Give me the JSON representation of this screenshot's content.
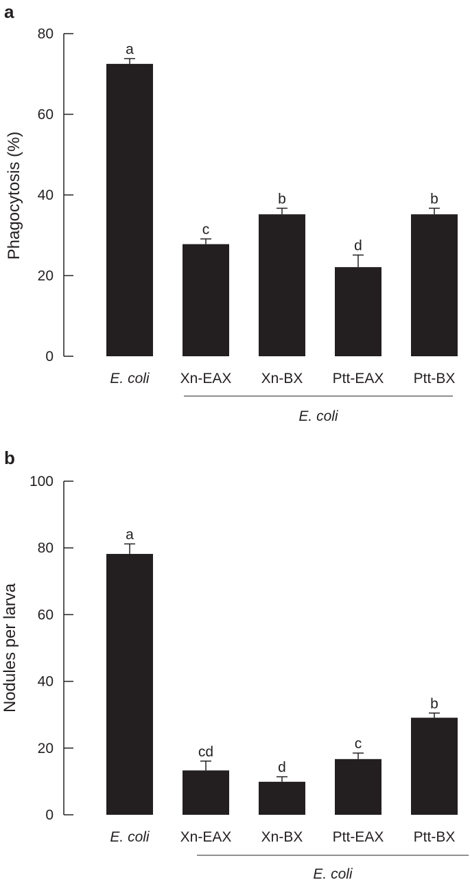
{
  "chart_data": [
    {
      "type": "bar",
      "panel": "a",
      "ylabel": "Phagocytosis (%)",
      "ylim": [
        0,
        80
      ],
      "yticks": [
        0,
        20,
        40,
        60,
        80
      ],
      "categories": [
        "E. coli",
        "Xn-EAX",
        "Xn-BX",
        "Ptt-EAX",
        "Ptt-BX"
      ],
      "italic_categories": [
        true,
        false,
        false,
        false,
        false
      ],
      "values": [
        72.5,
        27.8,
        35.2,
        22.1,
        35.2
      ],
      "errors": [
        1.3,
        1.3,
        1.5,
        3.0,
        1.5
      ],
      "significance": [
        "a",
        "c",
        "b",
        "d",
        "b"
      ],
      "group_label": "E. coli",
      "group_range": [
        1,
        4
      ],
      "color": "#231f20"
    },
    {
      "type": "bar",
      "panel": "b",
      "ylabel": "Nodules per larva",
      "ylim": [
        0,
        100
      ],
      "yticks": [
        0,
        20,
        40,
        60,
        80,
        100
      ],
      "categories": [
        "E. coli",
        "Xn-EAX",
        "Xn-BX",
        "Ptt-EAX",
        "Ptt-BX"
      ],
      "italic_categories": [
        true,
        false,
        false,
        false,
        false
      ],
      "values": [
        78.2,
        13.3,
        9.9,
        16.7,
        29.1
      ],
      "errors": [
        3.0,
        2.8,
        1.5,
        1.8,
        1.4
      ],
      "significance": [
        "a",
        "cd",
        "d",
        "c",
        "b"
      ],
      "group_label": "E. coli",
      "group_range": [
        1,
        4
      ],
      "color": "#231f20"
    }
  ]
}
